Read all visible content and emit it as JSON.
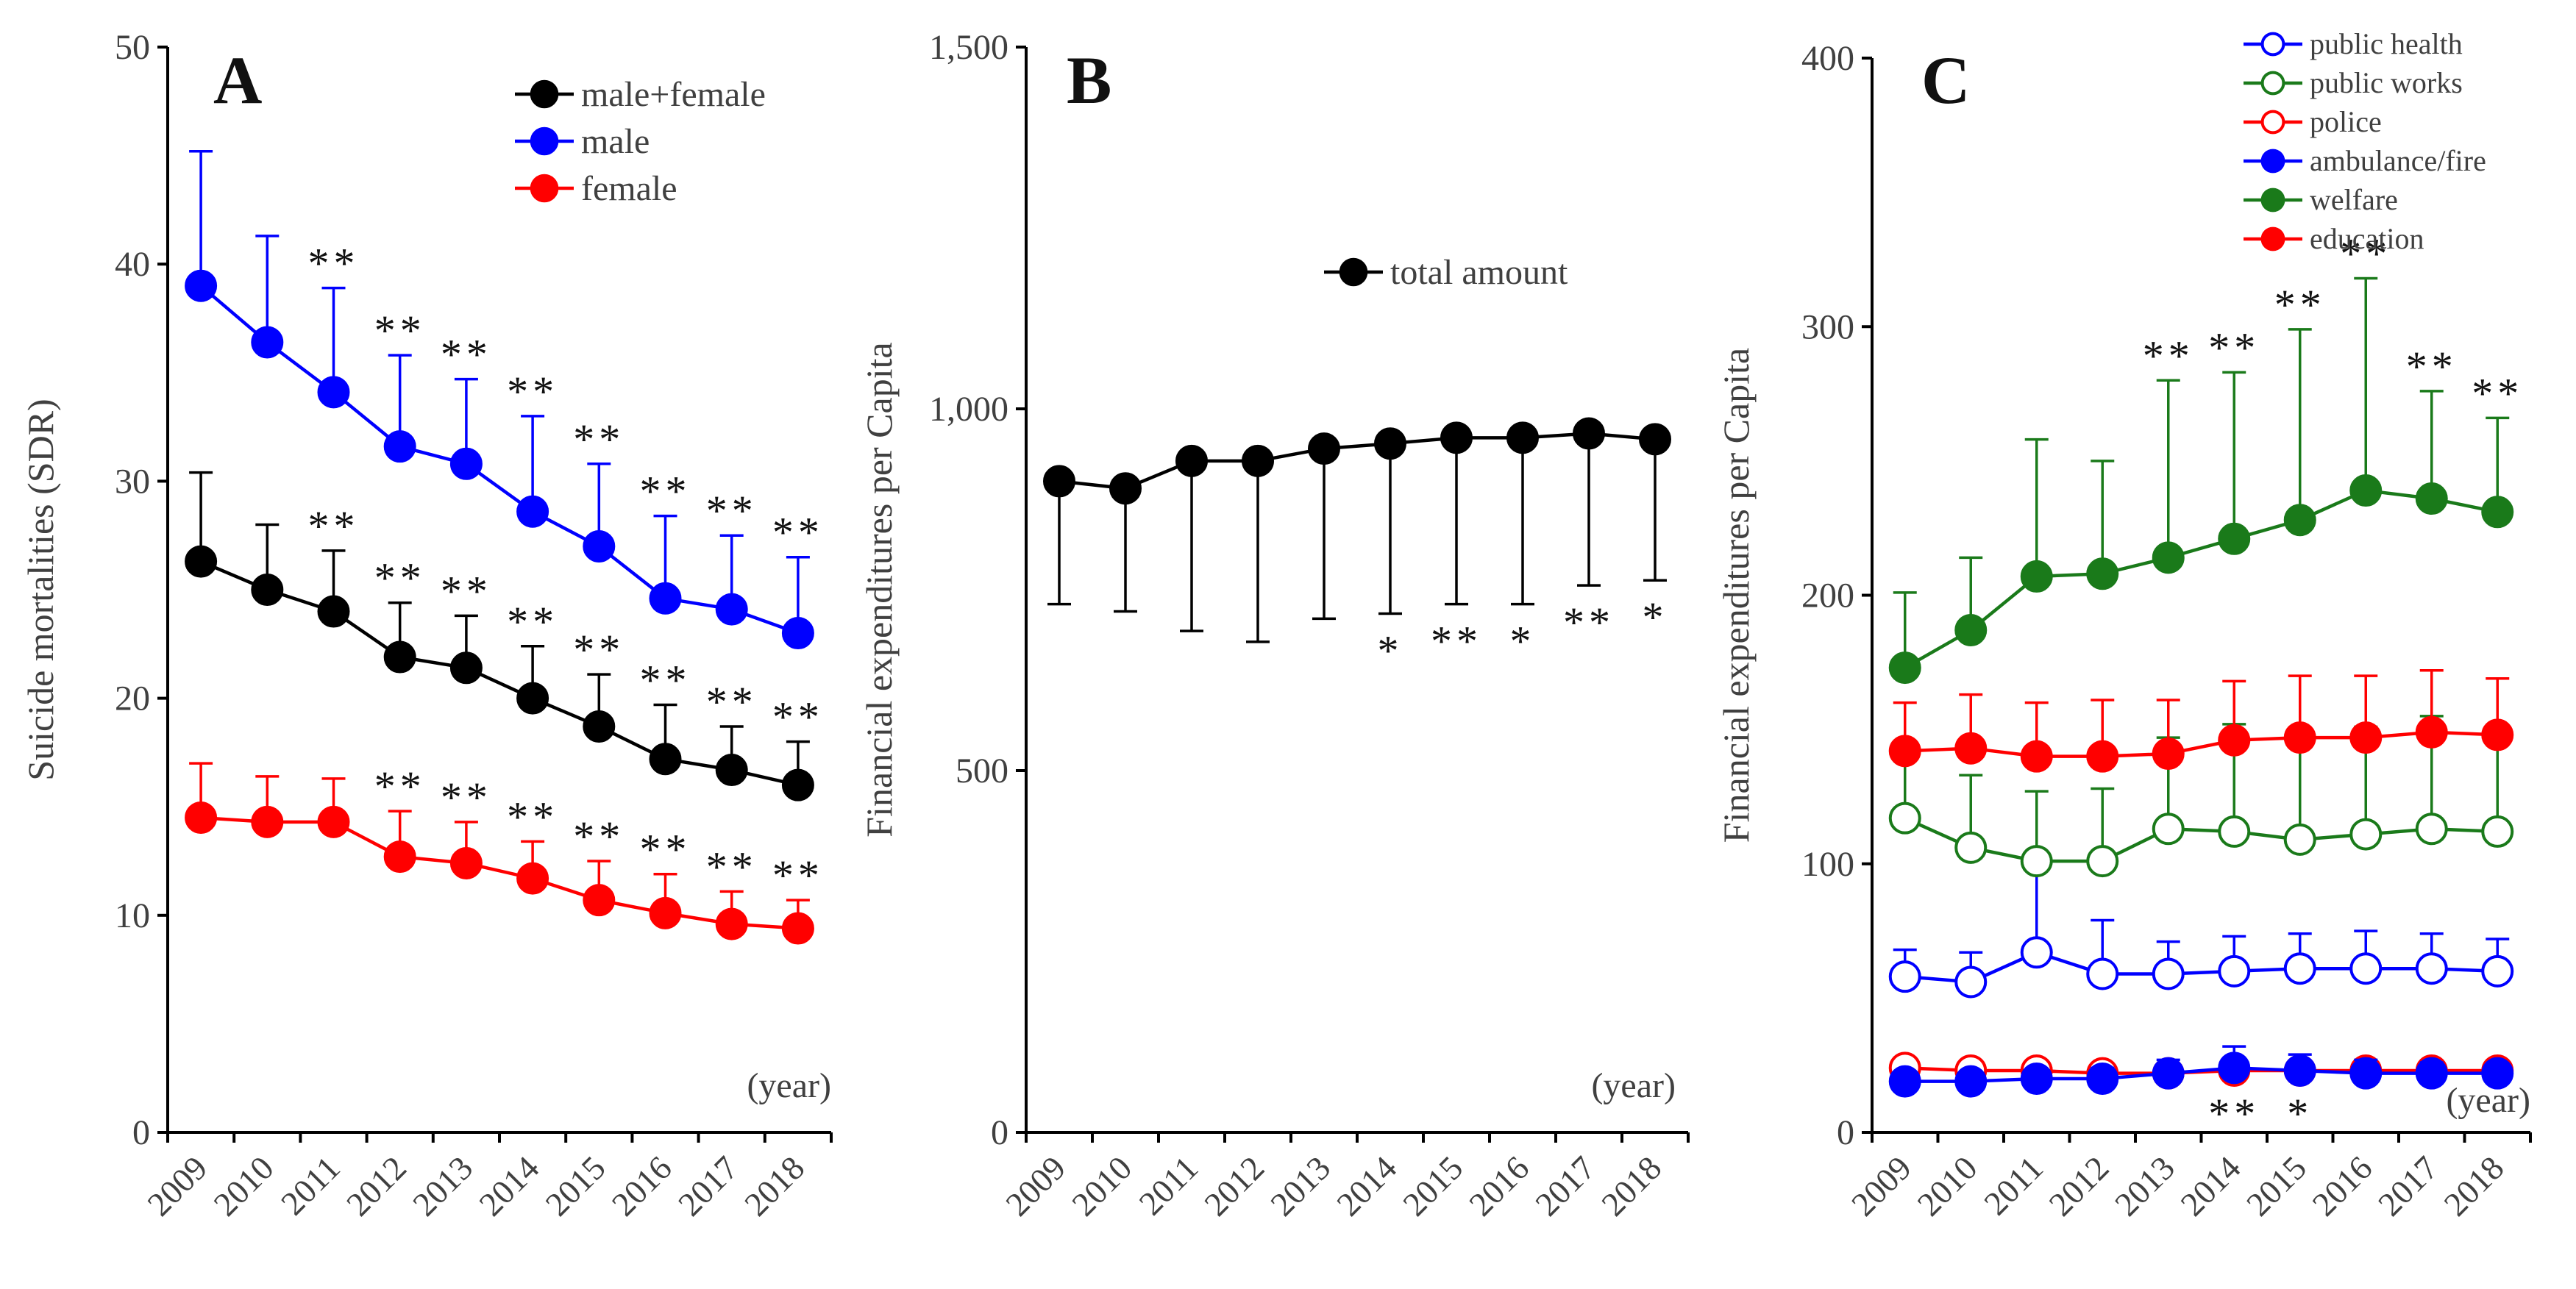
{
  "chart_data": [
    {
      "panel": "A",
      "type": "line",
      "ylabel": "Suicide mortalities (SDR)",
      "xlabel": "(year)",
      "ylim": [
        0,
        50
      ],
      "yticks": [
        "0",
        "10",
        "20",
        "30",
        "40",
        "50"
      ],
      "categories": [
        "2009",
        "2010",
        "2011",
        "2012",
        "2013",
        "2014",
        "2015",
        "2016",
        "2017",
        "2018"
      ],
      "legend_position": "top-right",
      "series": [
        {
          "name": "male+female",
          "color": "#000000",
          "filled": true,
          "values": [
            26.3,
            25.0,
            24.0,
            21.9,
            21.4,
            20.0,
            18.7,
            17.2,
            16.7,
            16.0
          ],
          "errors": [
            4.1,
            3.0,
            2.8,
            2.5,
            2.4,
            2.4,
            2.4,
            2.5,
            2.0,
            2.0
          ],
          "sig": [
            "",
            "",
            "**",
            "**",
            "**",
            "**",
            "**",
            "**",
            "**",
            "**"
          ]
        },
        {
          "name": "male",
          "color": "#0000ff",
          "filled": true,
          "values": [
            39.0,
            36.4,
            34.1,
            31.6,
            30.8,
            28.6,
            27.0,
            24.6,
            24.1,
            23.0
          ],
          "errors": [
            6.2,
            4.9,
            4.8,
            4.2,
            3.9,
            4.4,
            3.8,
            3.8,
            3.4,
            3.5
          ],
          "sig": [
            "",
            "",
            "**",
            "**",
            "**",
            "**",
            "**",
            "**",
            "**",
            "**"
          ]
        },
        {
          "name": "female",
          "color": "#ff0000",
          "filled": true,
          "values": [
            14.5,
            14.3,
            14.3,
            12.7,
            12.4,
            11.7,
            10.7,
            10.1,
            9.6,
            9.4
          ],
          "errors": [
            2.5,
            2.1,
            2.0,
            2.1,
            1.9,
            1.7,
            1.8,
            1.8,
            1.5,
            1.3
          ],
          "sig": [
            "",
            "",
            "",
            "**",
            "**",
            "**",
            "**",
            "**",
            "**",
            "**"
          ]
        }
      ]
    },
    {
      "panel": "B",
      "type": "line",
      "ylabel": "Financial expenditures per Capita",
      "xlabel": "(year)",
      "ylim": [
        0,
        1500
      ],
      "yticks": [
        "0",
        "500",
        "1,000",
        "1,500"
      ],
      "categories": [
        "2009",
        "2010",
        "2011",
        "2012",
        "2013",
        "2014",
        "2015",
        "2016",
        "2017",
        "2018"
      ],
      "legend_position": "upper-right",
      "series": [
        {
          "name": "total amount",
          "color": "#000000",
          "filled": true,
          "values": [
            900,
            890,
            928,
            928,
            945,
            952,
            960,
            960,
            966,
            958
          ],
          "errors_lower": [
            170,
            170,
            235,
            250,
            235,
            235,
            230,
            230,
            210,
            195
          ],
          "sig": [
            "",
            "",
            "",
            "",
            "",
            "*",
            "**",
            "*",
            "**",
            "*"
          ]
        }
      ]
    },
    {
      "panel": "C",
      "type": "line",
      "ylabel": "Financial expenditures per Capita",
      "xlabel": "(year)",
      "ylim": [
        0,
        400
      ],
      "yticks": [
        "0",
        "100",
        "200",
        "300",
        "400"
      ],
      "categories": [
        "2009",
        "2010",
        "2011",
        "2012",
        "2013",
        "2014",
        "2015",
        "2016",
        "2017",
        "2018"
      ],
      "legend_position": "top-right",
      "series": [
        {
          "name": "public health",
          "color": "#0000ff",
          "filled": false,
          "values": [
            58,
            56,
            67,
            59,
            59,
            60,
            61,
            61,
            61,
            60
          ],
          "errors": [
            10,
            11,
            35,
            20,
            12,
            13,
            13,
            14,
            13,
            12
          ]
        },
        {
          "name": "public works",
          "color": "#1a7a1a",
          "filled": false,
          "values": [
            117,
            106,
            101,
            101,
            113,
            112,
            109,
            111,
            113,
            112
          ],
          "errors": [
            28,
            27,
            26,
            27,
            34,
            40,
            38,
            40,
            42,
            38
          ]
        },
        {
          "name": "police",
          "color": "#ff0000",
          "filled": false,
          "values": [
            24,
            23,
            23,
            22,
            22,
            23,
            23,
            23,
            23,
            23
          ],
          "errors": [
            0,
            0,
            0,
            0,
            0,
            0,
            0,
            0,
            0,
            0
          ]
        },
        {
          "name": "ambulance/fire",
          "color": "#0000ff",
          "filled": true,
          "values": [
            19,
            19,
            20,
            20,
            22,
            24,
            23,
            22,
            22,
            22
          ],
          "errors": [
            2,
            2,
            3,
            4,
            5,
            8,
            6,
            5,
            4,
            3
          ],
          "sig": [
            "",
            "",
            "",
            "",
            "",
            "**",
            "*",
            "",
            "",
            ""
          ]
        },
        {
          "name": "welfare",
          "color": "#1a7a1a",
          "filled": true,
          "values": [
            173,
            187,
            207,
            208,
            214,
            221,
            228,
            239,
            236,
            231
          ],
          "errors": [
            28,
            27,
            51,
            42,
            66,
            62,
            71,
            79,
            40,
            35
          ],
          "sig": [
            "",
            "",
            "",
            "",
            "**",
            "**",
            "**",
            "**",
            "**",
            "**"
          ]
        },
        {
          "name": "education",
          "color": "#ff0000",
          "filled": true,
          "values": [
            142,
            143,
            140,
            140,
            141,
            146,
            147,
            147,
            149,
            148
          ],
          "errors": [
            18,
            20,
            20,
            21,
            20,
            22,
            23,
            23,
            23,
            21
          ]
        }
      ]
    }
  ]
}
